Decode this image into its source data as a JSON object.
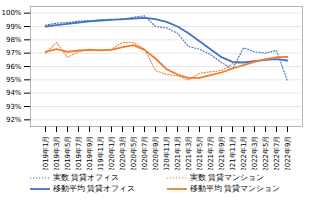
{
  "chart_data": {
    "type": "line",
    "categories": [
      "2019年1月",
      "2019年3月",
      "2019年5月",
      "2019年7月",
      "2019年9月",
      "2019年11月",
      "2020年1月",
      "2020年3月",
      "2020年5月",
      "2020年7月",
      "2020年9月",
      "2020年11月",
      "2021年1月",
      "2021年3月",
      "2021年5月",
      "2021年7月",
      "2021年9月",
      "2021年11月",
      "2022年1月",
      "2022年3月",
      "2022年5月",
      "2022年7月",
      "2022年9月"
    ],
    "series": [
      {
        "name": "実数 賃貸オフィス",
        "color": "#4472C4",
        "line_style": "dotted",
        "values": [
          99.1,
          99.25,
          99.3,
          99.4,
          99.45,
          99.5,
          99.55,
          99.5,
          99.7,
          99.8,
          99.0,
          98.9,
          98.5,
          97.5,
          97.3,
          96.9,
          96.3,
          95.8,
          97.4,
          97.1,
          97.0,
          97.2,
          94.9
        ]
      },
      {
        "name": "実数 賃貸マンション",
        "color": "#ED7D31",
        "line_style": "dotted",
        "values": [
          97.0,
          97.8,
          96.7,
          97.1,
          97.3,
          97.2,
          97.3,
          97.8,
          97.8,
          97.3,
          95.7,
          95.4,
          95.3,
          95.0,
          95.5,
          95.6,
          95.7,
          96.2,
          96.3,
          96.4,
          96.5,
          96.7,
          96.7
        ]
      },
      {
        "name": "移動平均 賃貸オフィス",
        "color": "#4472C4",
        "line_style": "solid",
        "values": [
          99.0,
          99.1,
          99.2,
          99.3,
          99.38,
          99.45,
          99.5,
          99.55,
          99.6,
          99.65,
          99.55,
          99.35,
          99.0,
          98.5,
          97.9,
          97.3,
          96.7,
          96.35,
          96.3,
          96.4,
          96.5,
          96.55,
          96.45
        ]
      },
      {
        "name": "移動平均 賃貸マンション",
        "color": "#ED7D31",
        "line_style": "solid",
        "values": [
          97.1,
          97.3,
          97.1,
          97.2,
          97.25,
          97.22,
          97.25,
          97.45,
          97.6,
          97.25,
          96.6,
          95.8,
          95.4,
          95.15,
          95.15,
          95.35,
          95.55,
          95.85,
          96.1,
          96.35,
          96.55,
          96.68,
          96.72
        ]
      }
    ],
    "ylim": [
      91.5,
      100.5
    ],
    "yticks": [
      {
        "value": 92,
        "label": "92%"
      },
      {
        "value": 93,
        "label": "93%"
      },
      {
        "value": 94,
        "label": "94%"
      },
      {
        "value": 95,
        "label": "95%"
      },
      {
        "value": 96,
        "label": "96%"
      },
      {
        "value": 97,
        "label": "97%"
      },
      {
        "value": 98,
        "label": "98%"
      },
      {
        "value": 99,
        "label": "99%"
      },
      {
        "value": 100,
        "label": "100%"
      }
    ],
    "grid": true,
    "legend": "bottom"
  }
}
